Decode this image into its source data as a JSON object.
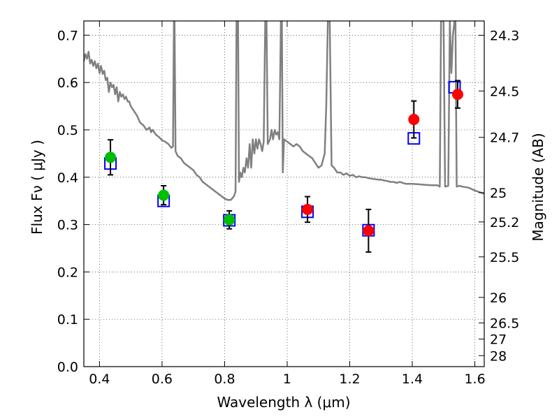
{
  "chart_data": {
    "type": "scatter",
    "xlabel": "Wavelength  λ (μm)",
    "ylabel": "Flux  Fν  ( μJy )",
    "ylabel_right": "Magnitude (AB)",
    "xlim": [
      0.35,
      1.63
    ],
    "ylim": [
      0.0,
      0.73
    ],
    "grid": true,
    "x_ticks": [
      0.4,
      0.6,
      0.8,
      1.0,
      1.2,
      1.4,
      1.6
    ],
    "x_tick_labels": [
      "0.4",
      "0.6",
      "0.8",
      "1",
      "1.2",
      "1.4",
      "1.6"
    ],
    "y_ticks": [
      0.0,
      0.1,
      0.2,
      0.3,
      0.4,
      0.5,
      0.6,
      0.7
    ],
    "y_tick_labels": [
      "0.0",
      "0.1",
      "0.2",
      "0.3",
      "0.4",
      "0.5",
      "0.6",
      "0.7"
    ],
    "right_ticks": [
      {
        "label": "24.3",
        "flux": 0.6998
      },
      {
        "label": "24.5",
        "flux": 0.5821
      },
      {
        "label": "24.7",
        "flux": 0.4842
      },
      {
        "label": "25",
        "flux": 0.3673
      },
      {
        "label": "25.2",
        "flux": 0.3055
      },
      {
        "label": "25.5",
        "flux": 0.2318
      },
      {
        "label": "26",
        "flux": 0.1462
      },
      {
        "label": "26.5",
        "flux": 0.0923
      },
      {
        "label": "27",
        "flux": 0.0582
      },
      {
        "label": "28",
        "flux": 0.0232
      }
    ],
    "series": [
      {
        "type": "line",
        "color": "#808080",
        "points": [
          [
            0.35,
            0.645
          ],
          [
            0.355,
            0.66
          ],
          [
            0.36,
            0.65
          ],
          [
            0.365,
            0.665
          ],
          [
            0.37,
            0.64
          ],
          [
            0.375,
            0.648
          ],
          [
            0.38,
            0.635
          ],
          [
            0.385,
            0.645
          ],
          [
            0.39,
            0.63
          ],
          [
            0.395,
            0.64
          ],
          [
            0.4,
            0.62
          ],
          [
            0.405,
            0.635
          ],
          [
            0.41,
            0.618
          ],
          [
            0.415,
            0.625
          ],
          [
            0.42,
            0.605
          ],
          [
            0.425,
            0.61
          ],
          [
            0.43,
            0.58
          ],
          [
            0.435,
            0.6
          ],
          [
            0.44,
            0.59
          ],
          [
            0.445,
            0.595
          ],
          [
            0.45,
            0.575
          ],
          [
            0.455,
            0.59
          ],
          [
            0.46,
            0.56
          ],
          [
            0.465,
            0.58
          ],
          [
            0.47,
            0.57
          ],
          [
            0.475,
            0.575
          ],
          [
            0.48,
            0.565
          ],
          [
            0.485,
            0.57
          ],
          [
            0.49,
            0.56
          ],
          [
            0.495,
            0.56
          ],
          [
            0.5,
            0.55
          ],
          [
            0.51,
            0.54
          ],
          [
            0.52,
            0.53
          ],
          [
            0.53,
            0.515
          ],
          [
            0.54,
            0.51
          ],
          [
            0.55,
            0.5
          ],
          [
            0.56,
            0.505
          ],
          [
            0.565,
            0.495
          ],
          [
            0.57,
            0.5
          ],
          [
            0.58,
            0.49
          ],
          [
            0.59,
            0.485
          ],
          [
            0.6,
            0.478
          ],
          [
            0.61,
            0.475
          ],
          [
            0.62,
            0.47
          ],
          [
            0.63,
            0.462
          ],
          [
            0.635,
            0.465
          ],
          [
            0.638,
            0.73
          ],
          [
            0.64,
            0.73
          ],
          [
            0.643,
            0.455
          ],
          [
            0.65,
            0.445
          ],
          [
            0.66,
            0.44
          ],
          [
            0.67,
            0.43
          ],
          [
            0.68,
            0.425
          ],
          [
            0.69,
            0.42
          ],
          [
            0.7,
            0.415
          ],
          [
            0.71,
            0.405
          ],
          [
            0.72,
            0.4
          ],
          [
            0.73,
            0.39
          ],
          [
            0.74,
            0.385
          ],
          [
            0.75,
            0.38
          ],
          [
            0.76,
            0.375
          ],
          [
            0.77,
            0.37
          ],
          [
            0.78,
            0.365
          ],
          [
            0.79,
            0.36
          ],
          [
            0.8,
            0.355
          ],
          [
            0.81,
            0.352
          ],
          [
            0.82,
            0.352
          ],
          [
            0.83,
            0.36
          ],
          [
            0.835,
            0.37
          ],
          [
            0.838,
            0.73
          ],
          [
            0.843,
            0.73
          ],
          [
            0.846,
            0.39
          ],
          [
            0.85,
            0.41
          ],
          [
            0.855,
            0.4
          ],
          [
            0.86,
            0.42
          ],
          [
            0.865,
            0.41
          ],
          [
            0.87,
            0.44
          ],
          [
            0.875,
            0.42
          ],
          [
            0.88,
            0.47
          ],
          [
            0.885,
            0.42
          ],
          [
            0.89,
            0.48
          ],
          [
            0.895,
            0.45
          ],
          [
            0.9,
            0.48
          ],
          [
            0.905,
            0.46
          ],
          [
            0.91,
            0.48
          ],
          [
            0.915,
            0.47
          ],
          [
            0.92,
            0.455
          ],
          [
            0.925,
            0.475
          ],
          [
            0.93,
            0.73
          ],
          [
            0.934,
            0.73
          ],
          [
            0.938,
            0.47
          ],
          [
            0.945,
            0.48
          ],
          [
            0.95,
            0.5
          ],
          [
            0.955,
            0.48
          ],
          [
            0.96,
            0.5
          ],
          [
            0.965,
            0.49
          ],
          [
            0.97,
            0.495
          ],
          [
            0.975,
            0.48
          ],
          [
            0.98,
            0.73
          ],
          [
            0.983,
            0.73
          ],
          [
            0.986,
            0.41
          ],
          [
            0.99,
            0.48
          ],
          [
            1.0,
            0.475
          ],
          [
            1.01,
            0.47
          ],
          [
            1.02,
            0.465
          ],
          [
            1.03,
            0.47
          ],
          [
            1.04,
            0.465
          ],
          [
            1.05,
            0.455
          ],
          [
            1.06,
            0.45
          ],
          [
            1.07,
            0.445
          ],
          [
            1.08,
            0.44
          ],
          [
            1.09,
            0.43
          ],
          [
            1.1,
            0.42
          ],
          [
            1.11,
            0.425
          ],
          [
            1.12,
            0.45
          ],
          [
            1.125,
            0.55
          ],
          [
            1.13,
            0.73
          ],
          [
            1.136,
            0.73
          ],
          [
            1.142,
            0.425
          ],
          [
            1.15,
            0.42
          ],
          [
            1.16,
            0.41
          ],
          [
            1.17,
            0.41
          ],
          [
            1.18,
            0.405
          ],
          [
            1.19,
            0.408
          ],
          [
            1.2,
            0.403
          ],
          [
            1.21,
            0.405
          ],
          [
            1.22,
            0.4
          ],
          [
            1.23,
            0.402
          ],
          [
            1.24,
            0.4
          ],
          [
            1.25,
            0.4
          ],
          [
            1.26,
            0.398
          ],
          [
            1.27,
            0.397
          ],
          [
            1.28,
            0.396
          ],
          [
            1.29,
            0.395
          ],
          [
            1.3,
            0.395
          ],
          [
            1.31,
            0.393
          ],
          [
            1.32,
            0.392
          ],
          [
            1.33,
            0.39
          ],
          [
            1.34,
            0.39
          ],
          [
            1.35,
            0.388
          ],
          [
            1.36,
            0.39
          ],
          [
            1.37,
            0.388
          ],
          [
            1.38,
            0.386
          ],
          [
            1.39,
            0.386
          ],
          [
            1.4,
            0.386
          ],
          [
            1.42,
            0.385
          ],
          [
            1.44,
            0.384
          ],
          [
            1.46,
            0.383
          ],
          [
            1.48,
            0.383
          ],
          [
            1.488,
            0.38
          ],
          [
            1.492,
            0.73
          ],
          [
            1.5,
            0.73
          ],
          [
            1.505,
            0.38
          ],
          [
            1.515,
            0.382
          ],
          [
            1.52,
            0.73
          ],
          [
            1.525,
            0.62
          ],
          [
            1.53,
            0.7
          ],
          [
            1.535,
            0.73
          ],
          [
            1.538,
            0.73
          ],
          [
            1.542,
            0.38
          ],
          [
            1.55,
            0.382
          ],
          [
            1.56,
            0.38
          ],
          [
            1.58,
            0.378
          ],
          [
            1.6,
            0.372
          ],
          [
            1.63,
            0.365
          ]
        ]
      },
      {
        "type": "squares",
        "color": "#0000ff",
        "x": [
          0.435,
          0.605,
          0.815,
          1.065,
          1.26,
          1.405,
          1.535
        ],
        "y": [
          0.429,
          0.35,
          0.309,
          0.327,
          0.288,
          0.482,
          0.59
        ]
      },
      {
        "type": "errorbars",
        "color": "#000000",
        "x": [
          0.435,
          0.605,
          0.815,
          1.065,
          1.26,
          1.405,
          1.545
        ],
        "y": [
          0.442,
          0.362,
          0.31,
          0.332,
          0.287,
          0.522,
          0.575
        ],
        "err": [
          0.037,
          0.02,
          0.019,
          0.027,
          0.045,
          0.039,
          0.029
        ]
      },
      {
        "type": "points",
        "color": "#00bf00",
        "x": [
          0.435,
          0.605,
          0.815
        ],
        "y": [
          0.442,
          0.362,
          0.31
        ]
      },
      {
        "type": "points",
        "color": "#ff0000",
        "x": [
          1.065,
          1.26,
          1.405,
          1.545
        ],
        "y": [
          0.332,
          0.287,
          0.522,
          0.575
        ]
      }
    ]
  }
}
